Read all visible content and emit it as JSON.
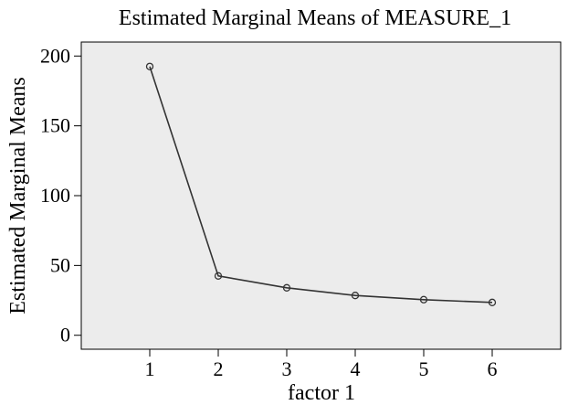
{
  "chart_data": {
    "type": "line",
    "title": "Estimated Marginal Means of MEASURE_1",
    "xlabel": "factor 1",
    "ylabel": "Estimated Marginal Means",
    "x": [
      1,
      2,
      3,
      4,
      5,
      6
    ],
    "series": [
      {
        "values": [
          192.5,
          42.5,
          34.0,
          28.5,
          25.5,
          23.5
        ]
      }
    ],
    "xlim": [
      0,
      7
    ],
    "ylim": [
      -10,
      210
    ],
    "xticks": [
      "1",
      "2",
      "3",
      "4",
      "5",
      "6"
    ],
    "yticks": [
      "0",
      "50",
      "100",
      "150",
      "200"
    ],
    "grid": false,
    "colors": {
      "plot_background": "#ececec",
      "line": "#333333",
      "frame": "#000000"
    }
  }
}
